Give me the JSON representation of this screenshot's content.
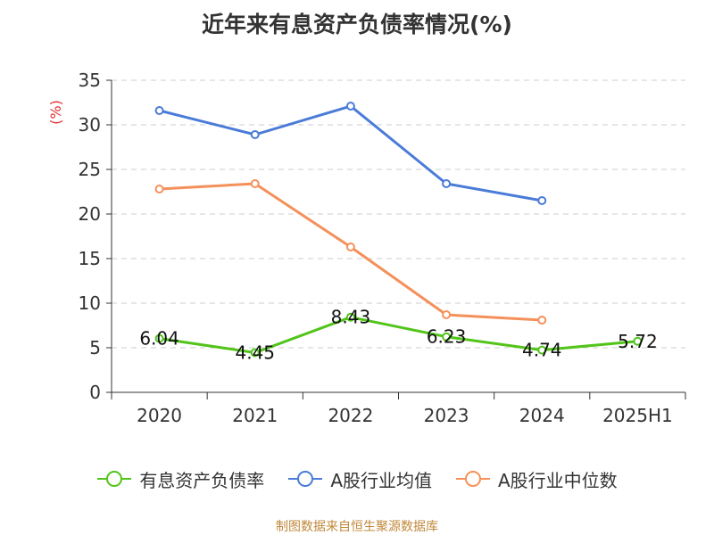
{
  "chart_data": {
    "type": "line",
    "title": "近年来有息资产负债率情况(%)",
    "ylabel": "(%)",
    "xlabel": "",
    "categories": [
      "2020",
      "2021",
      "2022",
      "2023",
      "2024",
      "2025H1"
    ],
    "ylim": [
      0,
      35
    ],
    "yticks": [
      0,
      5,
      10,
      15,
      20,
      25,
      30,
      35
    ],
    "grid": true,
    "legend_position": "bottom",
    "series": [
      {
        "name": "有息资产负债率",
        "color": "#52c41a",
        "values": [
          6.04,
          4.45,
          8.43,
          6.23,
          4.74,
          5.72
        ],
        "labels": [
          "6.04",
          "4.45",
          "8.43",
          "6.23",
          "4.74",
          "5.72"
        ]
      },
      {
        "name": "A股行业均值",
        "color": "#4a7bd8",
        "values": [
          31.6,
          28.9,
          32.1,
          23.4,
          21.5,
          null
        ]
      },
      {
        "name": "A股行业中位数",
        "color": "#f5905a",
        "values": [
          22.8,
          23.4,
          16.3,
          8.7,
          8.1,
          null
        ]
      }
    ]
  },
  "source_text": "制图数据来自恒生聚源数据库"
}
